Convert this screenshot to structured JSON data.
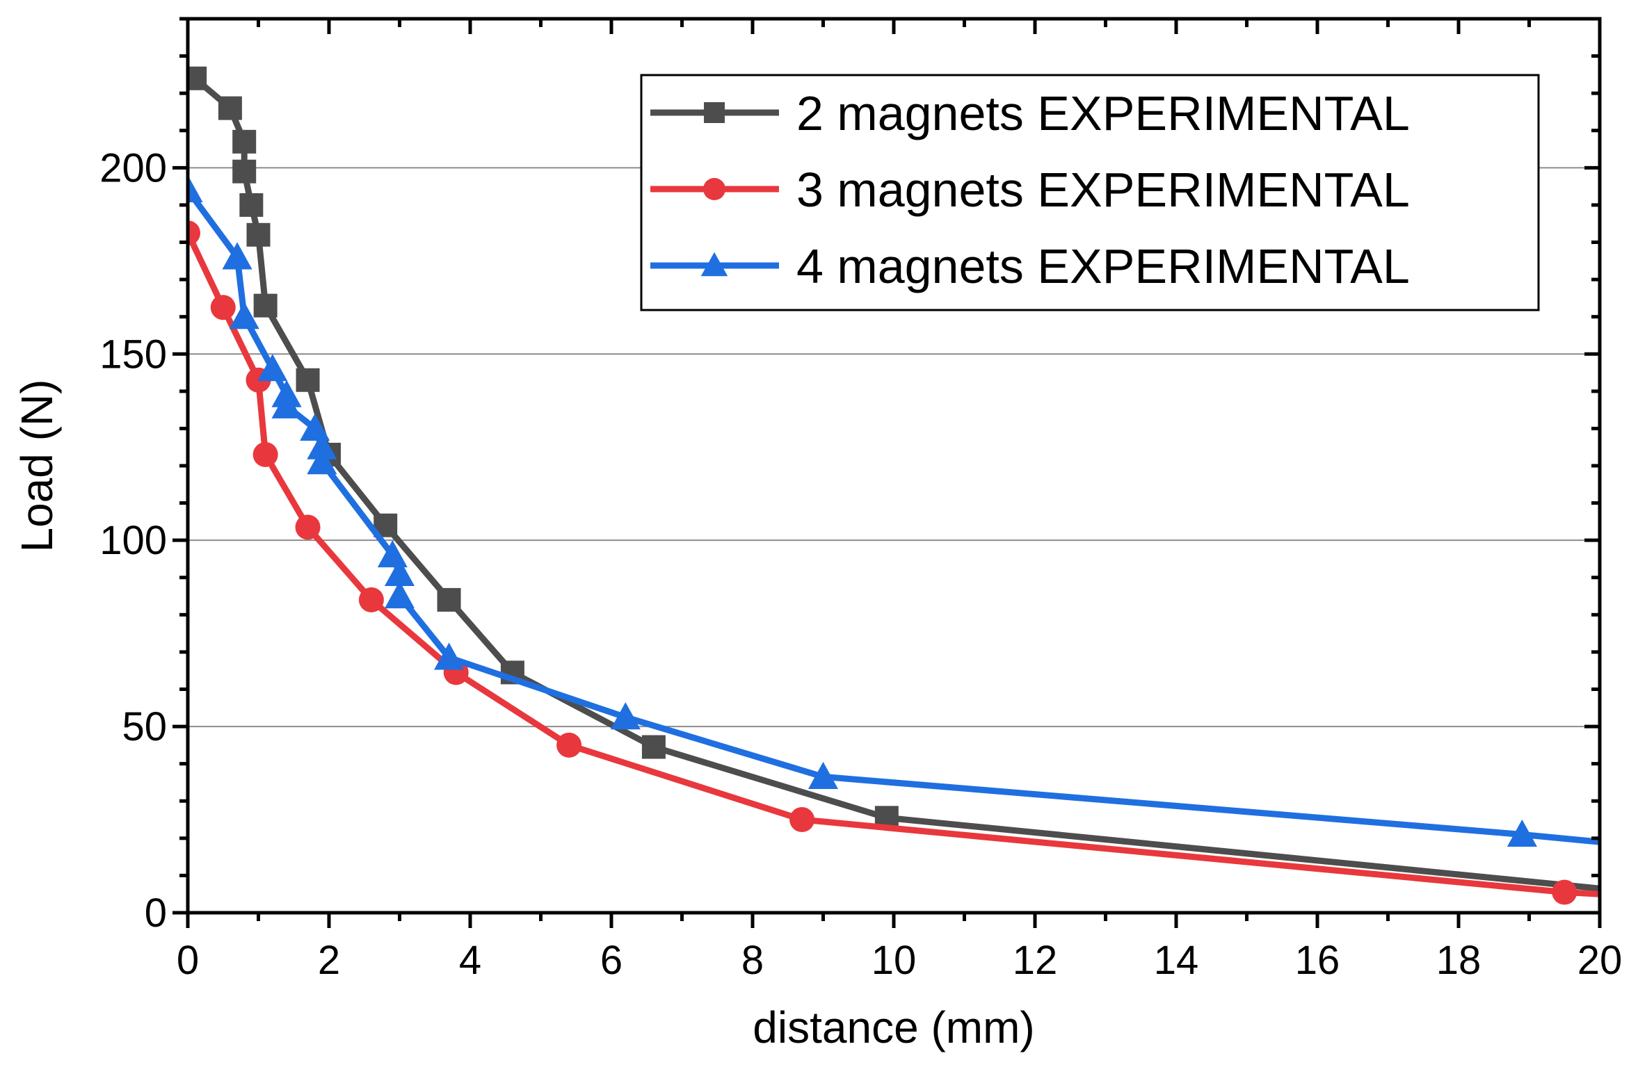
{
  "chart_data": {
    "type": "line",
    "title": "",
    "xlabel": "distance (mm)",
    "ylabel": "Load (N)",
    "xlim": [
      0,
      20
    ],
    "ylim": [
      0,
      240
    ],
    "xticks": [
      0,
      2,
      4,
      6,
      8,
      10,
      12,
      14,
      16,
      18,
      20
    ],
    "yticks": [
      0,
      50,
      100,
      150,
      200
    ],
    "grid": "horizontal",
    "legend": "top-right",
    "series": [
      {
        "name": "2 magnets EXPERIMENTAL",
        "color": "#4d4d4d",
        "marker": "square",
        "x": [
          0.1,
          0.6,
          0.8,
          0.8,
          0.9,
          1.0,
          1.1,
          1.7,
          2.0,
          2.8,
          3.7,
          4.6,
          6.6,
          9.9,
          20.0
        ],
        "y": [
          224,
          216,
          207,
          199,
          190,
          182,
          163,
          143,
          123,
          104,
          84,
          64.5,
          44.5,
          25.5,
          6.5
        ]
      },
      {
        "name": "3 magnets EXPERIMENTAL",
        "color": "#e8383d",
        "marker": "circle",
        "x": [
          0.0,
          0.5,
          1.0,
          1.1,
          1.7,
          2.6,
          3.8,
          5.4,
          8.7,
          19.5,
          20.0
        ],
        "y": [
          182.5,
          162.5,
          143,
          123,
          103.5,
          84,
          64.5,
          45,
          25,
          5.5,
          5
        ]
      },
      {
        "name": "4 magnets EXPERIMENTAL",
        "color": "#1f6fe0",
        "marker": "triangle",
        "x": [
          0.0,
          0.7,
          0.8,
          1.2,
          1.4,
          1.4,
          1.8,
          1.9,
          1.9,
          2.9,
          3.0,
          3.0,
          3.7,
          6.2,
          9.0,
          18.9,
          20.0
        ],
        "y": [
          194,
          176,
          160,
          146,
          139,
          136,
          130,
          125,
          121,
          96,
          91,
          85,
          68.5,
          52.5,
          36.5,
          21,
          19
        ]
      }
    ]
  }
}
